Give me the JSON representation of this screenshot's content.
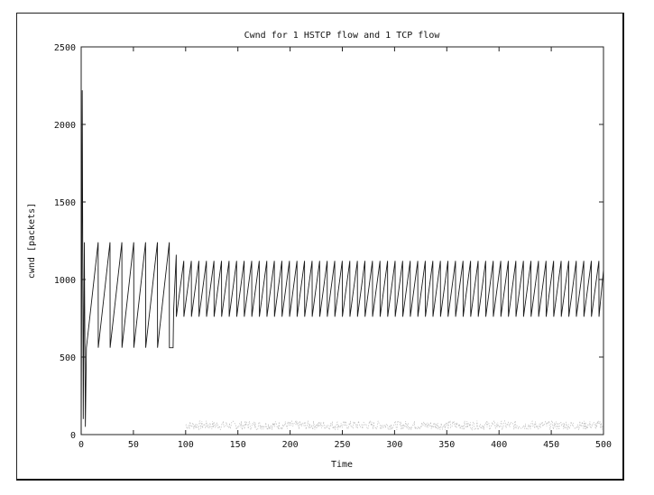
{
  "chart_data": {
    "type": "line",
    "title": "Cwnd for 1 HSTCP flow and 1 TCP flow",
    "xlabel": "Time",
    "ylabel": "cwnd [packets]",
    "xlim": [
      0,
      500
    ],
    "ylim": [
      0,
      2500
    ],
    "xticks": [
      0,
      50,
      100,
      150,
      200,
      250,
      300,
      350,
      400,
      450,
      500
    ],
    "yticks": [
      0,
      500,
      1000,
      1500,
      2000,
      2500
    ],
    "grid": false,
    "legend": "none",
    "series": [
      {
        "color": "#1a1a1a",
        "initial_spike_peak": 2220,
        "phase1": {
          "x_start": 5,
          "x_end": 88,
          "period": 12.5,
          "min": 560,
          "max": 1240
        },
        "transition": {
          "x": 88,
          "y_from": 560,
          "y_to": 1160
        },
        "phase2": {
          "x_start": 90,
          "x_end": 500,
          "period": 7.5,
          "min": 760,
          "max": 1120
        }
      },
      {
        "color": "#b5b5b5",
        "region": {
          "x_start": 100,
          "x_end": 500,
          "min": 30,
          "max": 90
        }
      }
    ]
  }
}
